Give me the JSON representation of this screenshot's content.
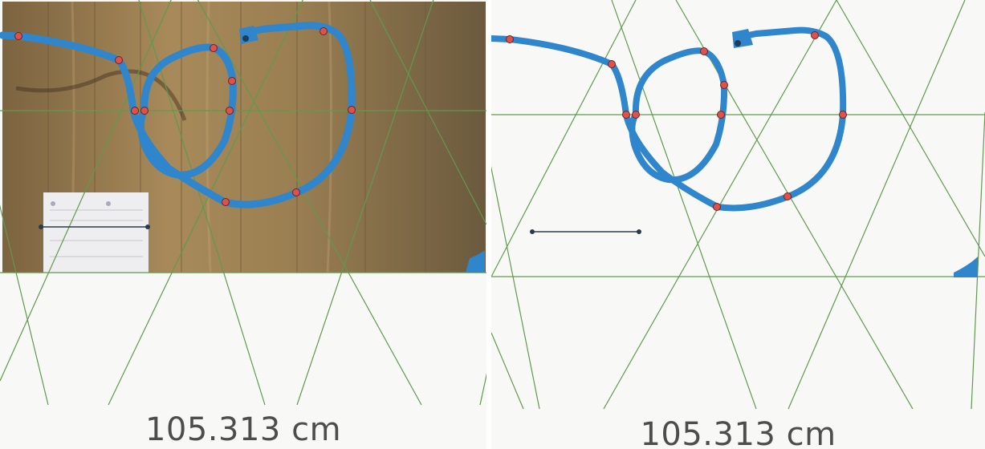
{
  "left_panel": {
    "view": "camera",
    "length_readout": "105.313 cm"
  },
  "right_panel": {
    "view": "segmented",
    "length_readout": "105.313 cm"
  },
  "colors": {
    "cable": "#2f86cc",
    "control_point": "#d9534f",
    "grid_line": "#5f9a4e",
    "wood": "#9c8052",
    "scale_bar": "#2b3a4a"
  },
  "control_points_count": 12
}
